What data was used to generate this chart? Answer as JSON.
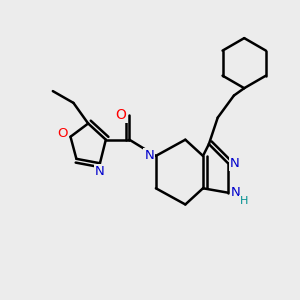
{
  "background_color": "#ececec",
  "bond_color": "#000000",
  "bond_width": 1.8,
  "atom_colors": {
    "N": "#0000cc",
    "O": "#ff0000",
    "C": "#000000",
    "H": "#009090"
  },
  "figsize": [
    3.0,
    3.0
  ],
  "dpi": 100
}
